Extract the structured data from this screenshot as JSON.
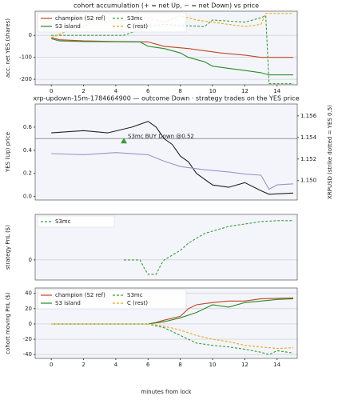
{
  "chart_data": [
    {
      "type": "line",
      "title": "cohort accumulation (+ = net Up, − = net Down) vs price",
      "ylabel": "acc. net YES (shares)",
      "xlim": [
        -1,
        15.25
      ],
      "xticks": [
        0,
        2,
        4,
        6,
        8,
        10,
        12,
        14
      ],
      "ylim": [
        -225,
        110
      ],
      "yticks": [
        0,
        -100,
        -200
      ],
      "grid": true,
      "legend": "upper left",
      "series": [
        {
          "name": "champion (S2 ref)",
          "color": "#c0471f",
          "dash": false,
          "x": [
            0,
            0.5,
            2,
            4,
            6,
            7,
            8.5,
            9.5,
            10.5,
            12,
            13,
            15
          ],
          "values": [
            -10,
            -20,
            -25,
            -28,
            -30,
            -50,
            -60,
            -70,
            -80,
            -90,
            -100,
            -100
          ]
        },
        {
          "name": "S3 island",
          "color": "#2a8a2a",
          "dash": false,
          "x": [
            0,
            0.5,
            2,
            5.5,
            6,
            7,
            8,
            8.5,
            9.5,
            10,
            11,
            12,
            13,
            13.5,
            15
          ],
          "values": [
            -15,
            -25,
            -28,
            -30,
            -50,
            -60,
            -80,
            -100,
            -120,
            -140,
            -150,
            -160,
            -170,
            -180,
            -180
          ]
        },
        {
          "name": "S3mc",
          "color": "#3a9a3a",
          "dash": true,
          "x": [
            0,
            4.5,
            6,
            7,
            8,
            9.5,
            10,
            12,
            13,
            13.3,
            13.5,
            15
          ],
          "values": [
            0,
            0,
            40,
            50,
            45,
            40,
            70,
            60,
            80,
            90,
            -220,
            -220
          ]
        },
        {
          "name": "C (rest)",
          "color": "#e6a817",
          "dash": true,
          "x": [
            0,
            1,
            2,
            2.5,
            5,
            6,
            7,
            8,
            9,
            10,
            11,
            12,
            13,
            13.3,
            15
          ],
          "values": [
            -10,
            20,
            40,
            60,
            70,
            80,
            60,
            90,
            70,
            60,
            50,
            40,
            50,
            100,
            100
          ]
        }
      ]
    },
    {
      "type": "line",
      "title": "xrp-updown-15m-1784664900 — outcome Down · strategy trades on the YES price",
      "ylabel": "YES (Up) price",
      "y2label": "XRPUSD (strike dotted = YES 0.5)",
      "xlim": [
        -1,
        15.25
      ],
      "ylim": [
        -0.03,
        0.8
      ],
      "yticks": [
        {
          "value": 0,
          "label": "0.0"
        },
        {
          "value": 0.2,
          "label": "0.2"
        },
        {
          "value": 0.4,
          "label": "0.4"
        },
        {
          "value": 0.6,
          "label": "0.6"
        }
      ],
      "y2lim": [
        1.1482,
        1.1571
      ],
      "y2ticks": [
        {
          "value": 1.15,
          "label": "1.150"
        },
        {
          "value": 1.152,
          "label": "1.152"
        },
        {
          "value": 1.154,
          "label": "1.154"
        },
        {
          "value": 1.156,
          "label": "1.156"
        }
      ],
      "reference_line": 0.5,
      "grid": false,
      "series": [
        {
          "name": "YES price",
          "color": "#222222",
          "dash": false,
          "x": [
            0,
            2,
            3.5,
            5,
            6,
            6.5,
            7,
            7.5,
            8,
            8.5,
            9,
            9.5,
            10,
            11,
            12,
            13,
            13.5,
            15
          ],
          "values": [
            0.55,
            0.57,
            0.55,
            0.6,
            0.65,
            0.6,
            0.5,
            0.45,
            0.35,
            0.3,
            0.2,
            0.15,
            0.1,
            0.08,
            0.12,
            0.05,
            0.02,
            0.03
          ]
        },
        {
          "name": "XRPUSD",
          "color": "#9b95c9",
          "dash": false,
          "axis": "y2",
          "x": [
            0,
            2,
            4,
            6,
            7,
            8,
            9.5,
            11,
            12,
            13,
            13.5,
            14,
            15
          ],
          "values": [
            1.1525,
            1.1524,
            1.1526,
            1.1524,
            1.1518,
            1.1513,
            1.151,
            1.1508,
            1.1506,
            1.1505,
            1.1492,
            1.1496,
            1.1497
          ]
        }
      ],
      "annotations": [
        {
          "text": "S3mc BUY Down @0.52",
          "x": 4.5,
          "y": 0.48,
          "color": "#3a9a3a"
        }
      ]
    },
    {
      "type": "line",
      "ylabel": "strategy PnL ($)",
      "xlim": [
        -1,
        15.25
      ],
      "ylim": [
        -4.2,
        9.5
      ],
      "yticks": [
        0
      ],
      "grid": true,
      "legend": "upper left",
      "series": [
        {
          "name": "S3mc",
          "color": "#3a9a3a",
          "dash": true,
          "x": [
            4.5,
            5.5,
            5.8,
            6,
            6.5,
            6.8,
            7,
            7.5,
            8,
            8.5,
            9,
            9.5,
            10,
            10.5,
            11,
            12,
            13,
            14,
            15
          ],
          "values": [
            0,
            0,
            -2,
            -3,
            -3,
            -1,
            0,
            1,
            2,
            3.5,
            4.5,
            5.5,
            6,
            6.5,
            7,
            7.5,
            8,
            8.2,
            8.2
          ]
        }
      ]
    },
    {
      "type": "line",
      "ylabel": "cohort moving PnL ($)",
      "xlabel": "minutes from lock",
      "xlim": [
        -1,
        15.25
      ],
      "xticks": [
        0,
        2,
        4,
        6,
        8,
        10,
        12,
        14
      ],
      "ylim": [
        -45,
        47
      ],
      "yticks": [
        40,
        20,
        0,
        -20,
        -40
      ],
      "grid": true,
      "legend": "upper left",
      "series": [
        {
          "name": "champion (S2 ref)",
          "color": "#c0471f",
          "dash": false,
          "x": [
            0,
            6,
            6.5,
            7,
            8,
            8.5,
            9,
            10,
            11,
            12,
            13,
            15
          ],
          "values": [
            0,
            0,
            2,
            5,
            10,
            20,
            25,
            28,
            30,
            30,
            33,
            34
          ]
        },
        {
          "name": "S3 island",
          "color": "#2a8a2a",
          "dash": false,
          "x": [
            0,
            6,
            7,
            8,
            9,
            9.5,
            10,
            11,
            12,
            13,
            14,
            15
          ],
          "values": [
            0,
            0,
            3,
            8,
            15,
            20,
            25,
            22,
            28,
            30,
            32,
            33
          ]
        },
        {
          "name": "S3mc",
          "color": "#3a9a3a",
          "dash": true,
          "x": [
            0,
            6,
            7,
            8,
            8.5,
            9,
            10,
            11,
            12,
            13,
            13.5,
            14,
            15
          ],
          "values": [
            0,
            0,
            -5,
            -15,
            -20,
            -25,
            -28,
            -30,
            -33,
            -37,
            -40,
            -35,
            -38
          ]
        },
        {
          "name": "C (rest)",
          "color": "#e6a817",
          "dash": true,
          "x": [
            0,
            6,
            7,
            8,
            9,
            10,
            11,
            12,
            13,
            14,
            15
          ],
          "values": [
            0,
            0,
            -3,
            -8,
            -15,
            -20,
            -23,
            -28,
            -30,
            -32,
            -31
          ]
        }
      ]
    }
  ]
}
